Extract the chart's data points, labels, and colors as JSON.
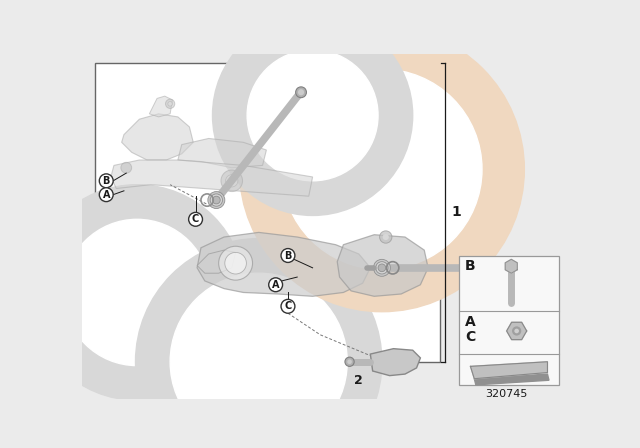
{
  "diagram_id": "320745",
  "bg_color": "#ebebeb",
  "main_bg": "#ffffff",
  "main_border": "#666666",
  "watermark_gray": "#d8d8d8",
  "watermark_peach": "#f0d8c0",
  "text_color": "#1a1a1a",
  "part_fill": "#d0d0d0",
  "part_edge": "#909090",
  "bolt_color": "#b8b8b8",
  "bolt_edge": "#888888",
  "label_circle_fill": "#ffffff",
  "label_circle_edge": "#333333",
  "dashed_color": "#777777",
  "legend_fill": "#f8f8f8",
  "legend_border": "#999999",
  "label1": "1",
  "label2": "2"
}
